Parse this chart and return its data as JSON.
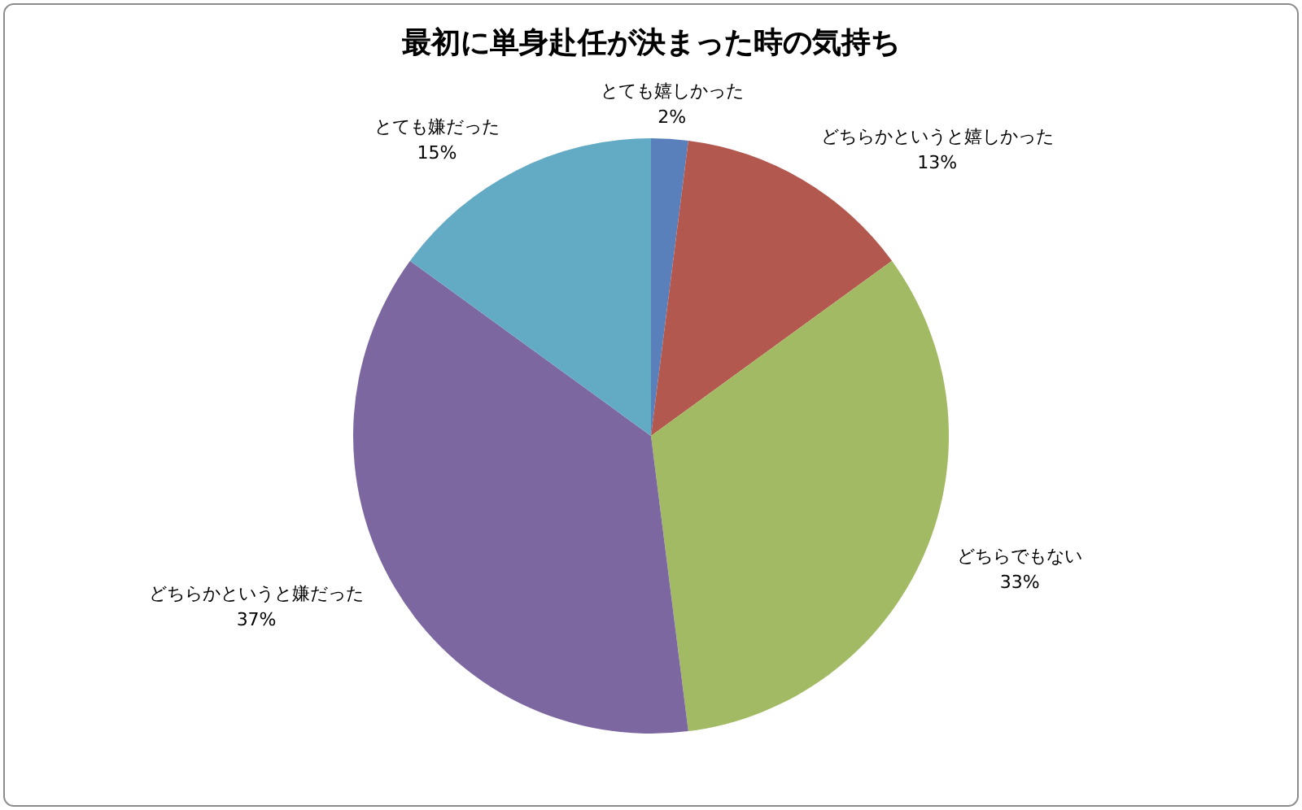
{
  "chart_data": {
    "type": "pie",
    "title": "最初に単身赴任が決まった時の気持ち",
    "categories": [
      "とても嬉しかった",
      "どちらかというと嬉しかった",
      "どちらでもない",
      "どちらかというと嫌だった",
      "とても嫌だった"
    ],
    "values": [
      2,
      13,
      33,
      37,
      15
    ],
    "value_labels": [
      "2%",
      "13%",
      "33%",
      "37%",
      "15%"
    ],
    "colors": [
      "#5a80bc",
      "#b3584f",
      "#a3ba65",
      "#7d67a0",
      "#63aac4"
    ]
  }
}
